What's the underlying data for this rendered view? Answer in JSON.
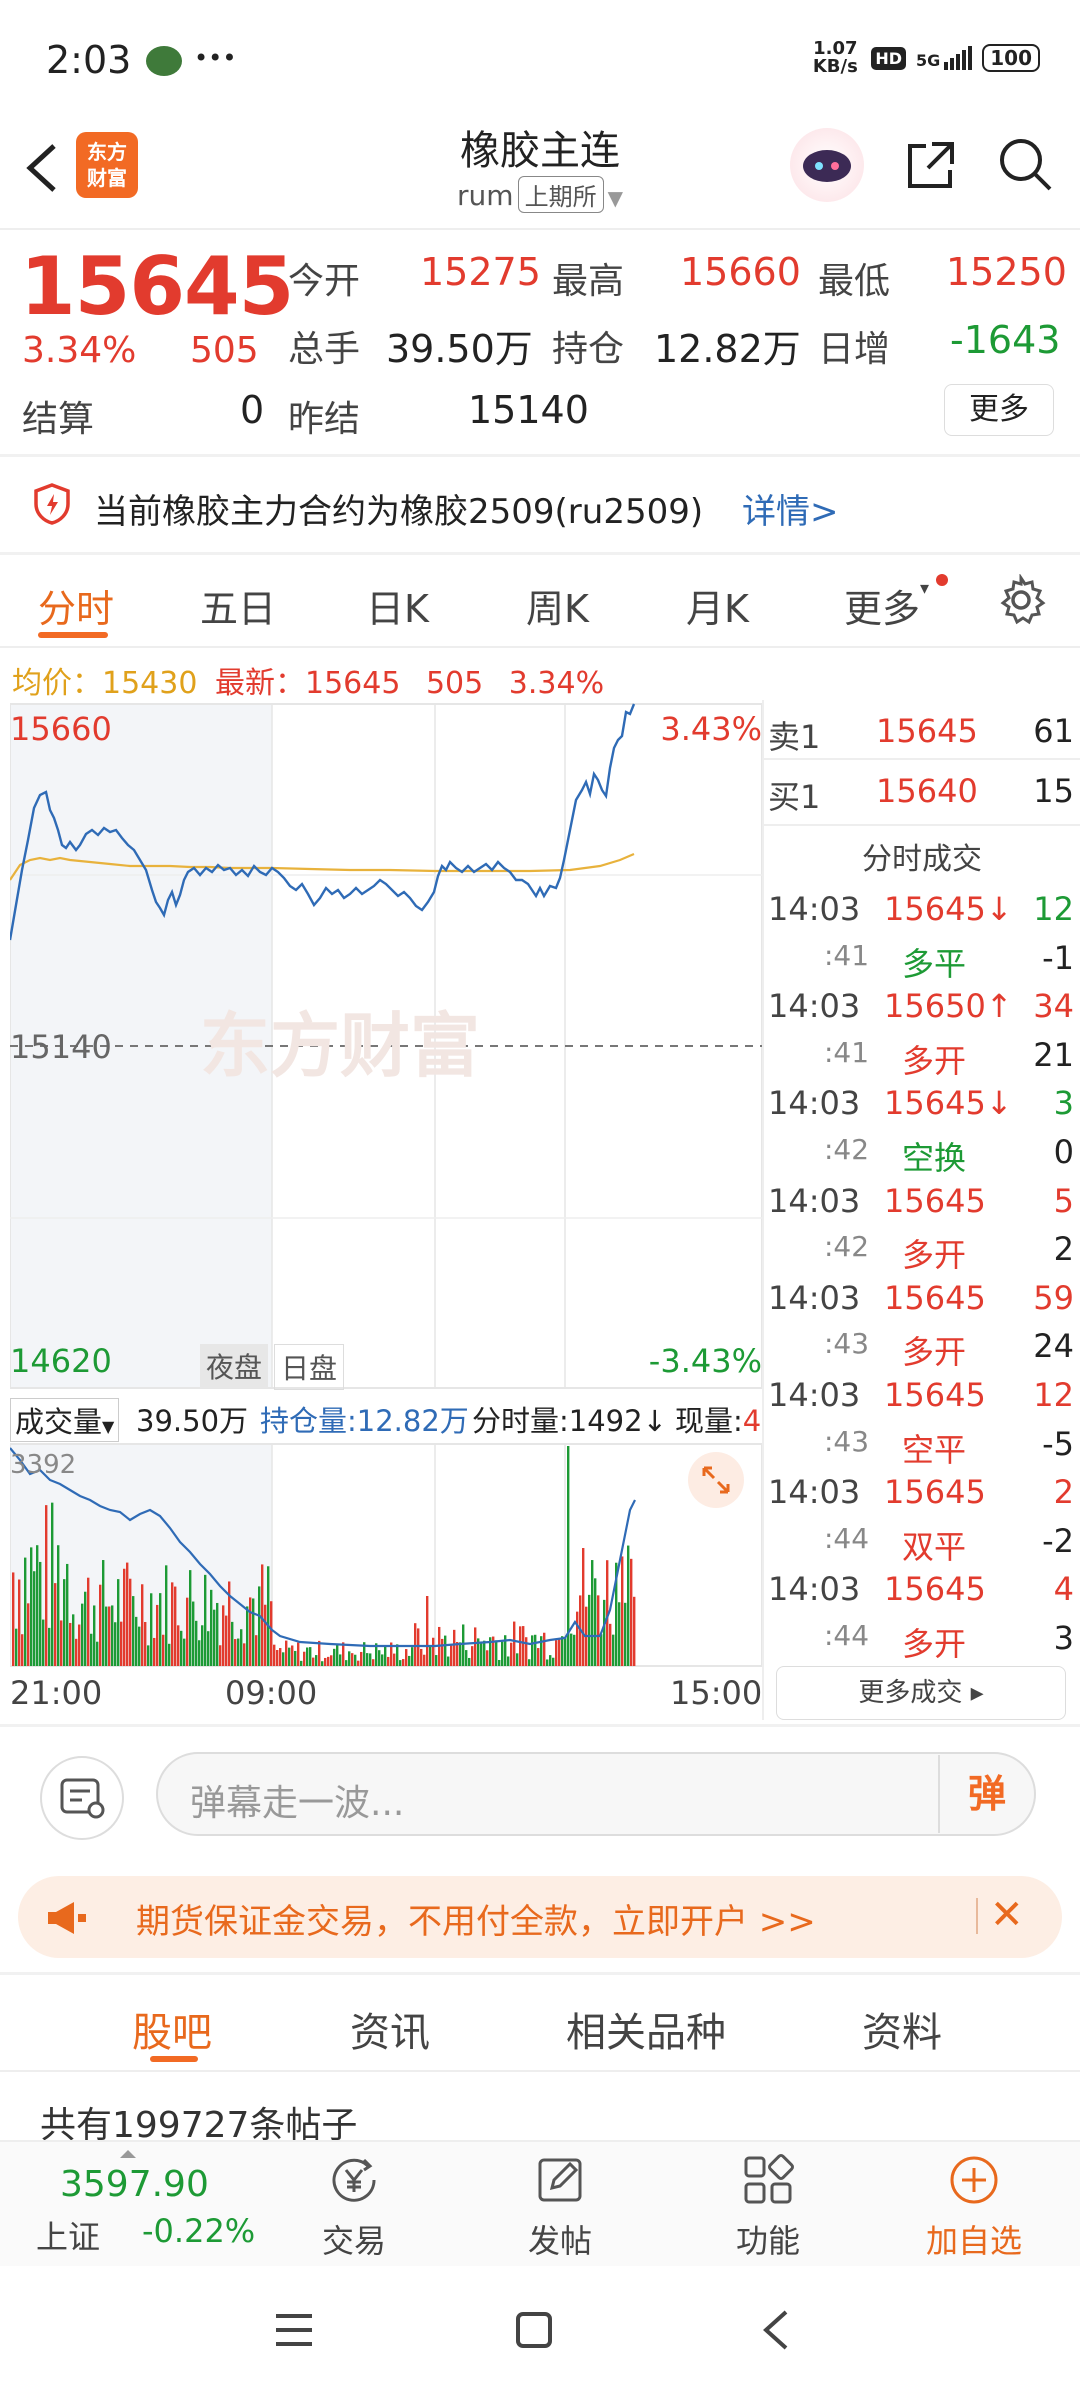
{
  "status_bar": {
    "time": "2:03",
    "more": "•••",
    "speed": "1.07 KB/s",
    "network": "5G",
    "battery": "100"
  },
  "header": {
    "back_icon": "chevron-left-icon",
    "logo_text": "东方财富",
    "title": "橡胶主连",
    "code": "rum",
    "exchange": "上期所",
    "share_icon": "share-icon",
    "search_icon": "search-icon"
  },
  "quote": {
    "price": "15645",
    "change_pct": "3.34%",
    "change_val": "505",
    "open_label": "今开",
    "open": "15275",
    "high_label": "最高",
    "high": "15660",
    "low_label": "最低",
    "low": "15250",
    "volume_label": "总手",
    "volume": "39.50万",
    "oi_label": "持仓",
    "oi": "12.82万",
    "daily_inc_label": "日增",
    "daily_inc": "-1643",
    "settle_label": "结算",
    "settle": "0",
    "prev_settle_label": "昨结",
    "prev_settle": "15140",
    "more_label": "更多"
  },
  "notice": {
    "text": "当前橡胶主力合约为橡胶2509(ru2509)",
    "link": "详情>"
  },
  "chart_tabs": [
    "分时",
    "五日",
    "日K",
    "周K",
    "月K",
    "更多"
  ],
  "chart_header": {
    "avg_label": "均价：",
    "avg": "15430",
    "latest_label": "最新：",
    "latest": "15645",
    "latest_chg": "505",
    "latest_pct": "3.34%"
  },
  "chart_axis": {
    "top_price": "15660",
    "top_pct": "3.43%",
    "mid_price": "15140",
    "bottom_price": "14620",
    "bottom_pct": "-3.43%",
    "night_label": "夜盘",
    "day_label": "日盘",
    "watermark": "东方财富"
  },
  "volume_bar": {
    "selector": "成交量",
    "volume": "39.50万",
    "oi": "持仓量:12.82万",
    "minute_vol": "分时量:1492",
    "current_label": "现量:",
    "current_val": "4",
    "max_vol": "3392"
  },
  "time_axis": [
    "21:00",
    "09:00",
    "15:00"
  ],
  "order_book": [
    {
      "label": "卖1",
      "price": "15645",
      "qty": "61"
    },
    {
      "label": "买1",
      "price": "15640",
      "qty": "15"
    }
  ],
  "trades_title": "分时成交",
  "trades": [
    {
      "time": "14:03",
      "price": "15645↓",
      "price_color": "red",
      "qty": "12",
      "qty_color": "green"
    },
    {
      "time": ":41",
      "price": "多平",
      "price_color": "green",
      "qty": "-1",
      "qty_color": "dark"
    },
    {
      "time": "14:03",
      "price": "15650↑",
      "price_color": "red",
      "qty": "34",
      "qty_color": "red"
    },
    {
      "time": ":41",
      "price": "多开",
      "price_color": "red",
      "qty": "21",
      "qty_color": "dark"
    },
    {
      "time": "14:03",
      "price": "15645↓",
      "price_color": "red",
      "qty": "3",
      "qty_color": "green"
    },
    {
      "time": ":42",
      "price": "空换",
      "price_color": "green",
      "qty": "0",
      "qty_color": "dark"
    },
    {
      "time": "14:03",
      "price": "15645",
      "price_color": "red",
      "qty": "5",
      "qty_color": "red"
    },
    {
      "time": ":42",
      "price": "多开",
      "price_color": "red",
      "qty": "2",
      "qty_color": "dark"
    },
    {
      "time": "14:03",
      "price": "15645",
      "price_color": "red",
      "qty": "59",
      "qty_color": "red"
    },
    {
      "time": ":43",
      "price": "多开",
      "price_color": "red",
      "qty": "24",
      "qty_color": "dark"
    },
    {
      "time": "14:03",
      "price": "15645",
      "price_color": "red",
      "qty": "12",
      "qty_color": "red"
    },
    {
      "time": ":43",
      "price": "空平",
      "price_color": "red",
      "qty": "-5",
      "qty_color": "dark"
    },
    {
      "time": "14:03",
      "price": "15645",
      "price_color": "red",
      "qty": "2",
      "qty_color": "red"
    },
    {
      "time": ":44",
      "price": "双平",
      "price_color": "red",
      "qty": "-2",
      "qty_color": "dark"
    },
    {
      "time": "14:03",
      "price": "15645",
      "price_color": "red",
      "qty": "4",
      "qty_color": "red"
    },
    {
      "time": ":44",
      "price": "多开",
      "price_color": "red",
      "qty": "3",
      "qty_color": "dark"
    }
  ],
  "more_trades": "更多成交 ▸",
  "comment": {
    "placeholder": "弹幕走一波...",
    "danmu_label": "弹"
  },
  "promo": {
    "text": "期货保证金交易，不用付全款，立即开户 >>"
  },
  "section_tabs": [
    "股吧",
    "资讯",
    "相关品种",
    "资料"
  ],
  "post_count": "共有199727条帖子",
  "bottom_nav": {
    "index_value": "3597.90",
    "index_name": "上证",
    "index_change": "-0.22%",
    "trade": "交易",
    "post": "发帖",
    "function": "功能",
    "add_watch": "加自选"
  },
  "colors": {
    "up": "#e23b2e",
    "down": "#1d9a35",
    "avg": "#e0a11b",
    "brand": "#f26a24",
    "price_line": "#2f6bb6"
  }
}
